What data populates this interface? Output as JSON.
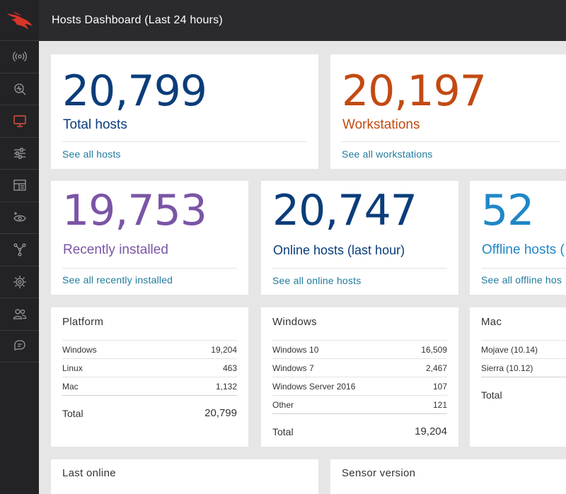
{
  "header": {
    "title": "Hosts Dashboard (Last 24 hours)"
  },
  "sidebar": {
    "logo_icon": "falcon-logo-icon",
    "items": [
      {
        "icon": "broadcast-icon"
      },
      {
        "icon": "search-activity-icon"
      },
      {
        "icon": "monitor-icon",
        "active": true
      },
      {
        "icon": "sliders-icon"
      },
      {
        "icon": "dashboard-layout-icon"
      },
      {
        "icon": "eye-sparkle-icon"
      },
      {
        "icon": "network-graph-icon"
      },
      {
        "icon": "target-icon"
      },
      {
        "icon": "users-icon"
      },
      {
        "icon": "support-chat-icon"
      }
    ]
  },
  "colors": {
    "total_hosts": "#0a3d7a",
    "workstations": "#c24a12",
    "recently_installed": "#7a55a6",
    "online_hosts": "#0a3d7a",
    "offline_hosts": "#1f87c7",
    "link": "#1f7a9c",
    "active_nav": "#e5533a"
  },
  "cards": {
    "total_hosts": {
      "value": "20,799",
      "label": "Total hosts",
      "link": "See all hosts"
    },
    "workstations": {
      "value": "20,197",
      "label": "Workstations",
      "link": "See all workstations"
    },
    "recently_installed": {
      "value": "19,753",
      "label": "Recently installed",
      "link": "See all recently installed"
    },
    "online_hosts": {
      "value": "20,747",
      "label": "Online hosts (last hour)",
      "link": "See all online hosts"
    },
    "offline_hosts": {
      "value": "52",
      "label": "Offline hosts (",
      "link": "See all offline hos"
    }
  },
  "platform": {
    "title": "Platform",
    "rows": [
      {
        "name": "Windows",
        "value": "19,204"
      },
      {
        "name": "Linux",
        "value": "463"
      },
      {
        "name": "Mac",
        "value": "1,132"
      }
    ],
    "total_label": "Total",
    "total_value": "20,799"
  },
  "windows": {
    "title": "Windows",
    "rows": [
      {
        "name": "Windows 10",
        "value": "16,509"
      },
      {
        "name": "Windows 7",
        "value": "2,467"
      },
      {
        "name": "Windows Server 2016",
        "value": "107"
      },
      {
        "name": "Other",
        "value": "121"
      }
    ],
    "total_label": "Total",
    "total_value": "19,204"
  },
  "mac": {
    "title": "Mac",
    "rows": [
      {
        "name": "Mojave (10.14)",
        "value": ""
      },
      {
        "name": "Sierra (10.12)",
        "value": ""
      }
    ],
    "total_label": "Total",
    "total_value": ""
  },
  "last_online": {
    "title": "Last online"
  },
  "sensor_version": {
    "title": "Sensor version"
  }
}
